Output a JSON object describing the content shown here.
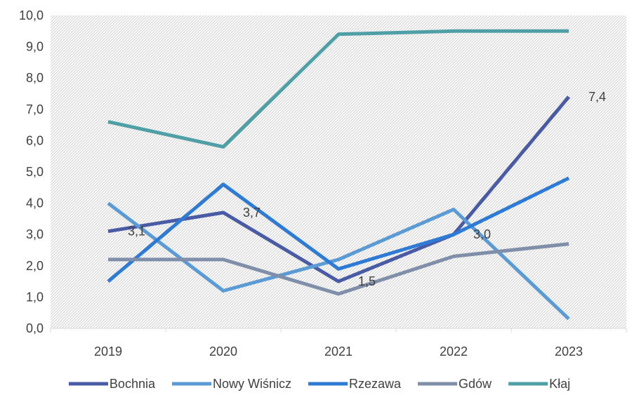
{
  "chart_data": {
    "type": "line",
    "categories": [
      "2019",
      "2020",
      "2021",
      "2022",
      "2023"
    ],
    "ylim": [
      0,
      10
    ],
    "ytick_step": 1,
    "y_tick_labels": [
      "0,0",
      "1,0",
      "2,0",
      "3,0",
      "4,0",
      "5,0",
      "6,0",
      "7,0",
      "8,0",
      "9,0",
      "10,0"
    ],
    "plot_background": "hatched",
    "legend_position": "bottom",
    "series": [
      {
        "name": "Bochnia",
        "color": "#4A5BA6",
        "values": [
          3.1,
          3.7,
          1.5,
          3.0,
          7.4
        ]
      },
      {
        "name": "Nowy Wiśnicz",
        "color": "#5B9BD5",
        "values": [
          4.0,
          1.2,
          2.2,
          3.8,
          0.3
        ]
      },
      {
        "name": "Rzezawa",
        "color": "#2E7BD6",
        "values": [
          1.5,
          4.6,
          1.9,
          3.0,
          4.8
        ]
      },
      {
        "name": "Gdów",
        "color": "#7F8FA9",
        "values": [
          2.2,
          2.2,
          1.1,
          2.3,
          2.7
        ]
      },
      {
        "name": "Kłaj",
        "color": "#4E9FA6",
        "values": [
          6.6,
          5.8,
          9.4,
          9.5,
          9.5
        ]
      }
    ],
    "data_labels": [
      {
        "series": "Bochnia",
        "index": 0,
        "text": "3,1"
      },
      {
        "series": "Bochnia",
        "index": 1,
        "text": "3,7"
      },
      {
        "series": "Bochnia",
        "index": 2,
        "text": "1,5"
      },
      {
        "series": "Bochnia",
        "index": 3,
        "text": "3,0"
      },
      {
        "series": "Bochnia",
        "index": 4,
        "text": "7,4"
      }
    ]
  }
}
